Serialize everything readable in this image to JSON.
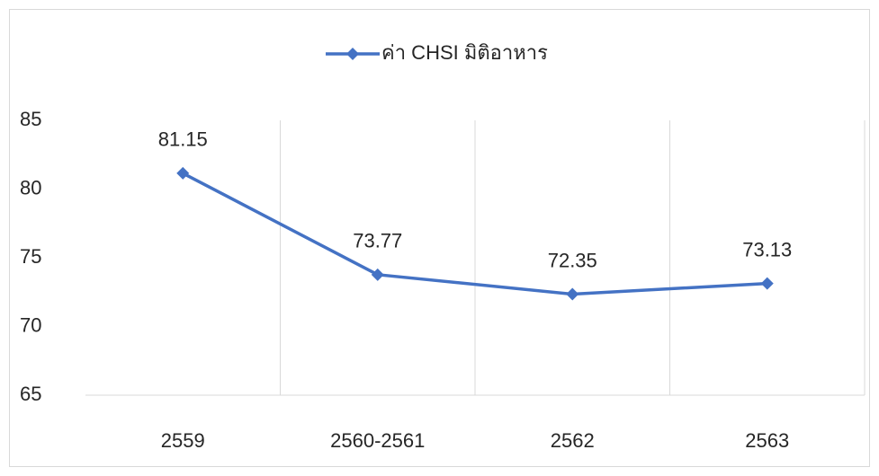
{
  "chart_data": {
    "type": "line",
    "categories": [
      "2559",
      "2560-2561",
      "2562",
      "2563"
    ],
    "series": [
      {
        "name": "ค่า CHSI มิติอาหาร",
        "color": "#4472c4",
        "values": [
          81.15,
          73.77,
          72.35,
          73.13
        ]
      }
    ],
    "ylim": [
      65,
      85
    ],
    "yticks": [
      65,
      70,
      75,
      80,
      85
    ],
    "grid": true,
    "legend": "top"
  }
}
